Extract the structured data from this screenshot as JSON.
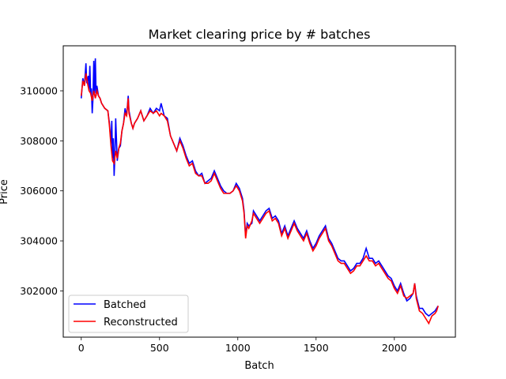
{
  "chart_data": {
    "type": "line",
    "title": "Market clearing price by # batches",
    "xlabel": "Batch",
    "ylabel": "Price",
    "xlim": [
      -115,
      2390
    ],
    "ylim": [
      300150,
      311800
    ],
    "xticks": [
      0,
      500,
      1000,
      1500,
      2000
    ],
    "yticks": [
      302000,
      304000,
      306000,
      308000,
      310000
    ],
    "legend": {
      "placement": "lower-left"
    },
    "grid": false,
    "series": [
      {
        "name": "Batched",
        "color": "#0000ff",
        "points": [
          [
            0,
            309700
          ],
          [
            10,
            310500
          ],
          [
            20,
            310200
          ],
          [
            30,
            311100
          ],
          [
            35,
            310300
          ],
          [
            45,
            310600
          ],
          [
            50,
            310000
          ],
          [
            55,
            311000
          ],
          [
            60,
            309900
          ],
          [
            65,
            310100
          ],
          [
            70,
            309100
          ],
          [
            75,
            309700
          ],
          [
            80,
            311200
          ],
          [
            85,
            309900
          ],
          [
            90,
            311300
          ],
          [
            95,
            309800
          ],
          [
            100,
            310200
          ],
          [
            110,
            309800
          ],
          [
            120,
            309700
          ],
          [
            130,
            309500
          ],
          [
            150,
            309300
          ],
          [
            170,
            309200
          ],
          [
            180,
            308700
          ],
          [
            190,
            307900
          ],
          [
            195,
            308800
          ],
          [
            200,
            307300
          ],
          [
            205,
            308100
          ],
          [
            210,
            306600
          ],
          [
            215,
            307400
          ],
          [
            220,
            308900
          ],
          [
            230,
            307200
          ],
          [
            240,
            307700
          ],
          [
            250,
            307800
          ],
          [
            260,
            308400
          ],
          [
            270,
            308700
          ],
          [
            280,
            309300
          ],
          [
            290,
            309000
          ],
          [
            300,
            309800
          ],
          [
            305,
            309200
          ],
          [
            320,
            308700
          ],
          [
            330,
            308500
          ],
          [
            340,
            308700
          ],
          [
            360,
            308900
          ],
          [
            380,
            309200
          ],
          [
            400,
            308800
          ],
          [
            420,
            309000
          ],
          [
            440,
            309300
          ],
          [
            460,
            309100
          ],
          [
            480,
            309300
          ],
          [
            500,
            309200
          ],
          [
            510,
            309500
          ],
          [
            530,
            309000
          ],
          [
            550,
            308900
          ],
          [
            570,
            308200
          ],
          [
            590,
            307900
          ],
          [
            610,
            307600
          ],
          [
            630,
            308100
          ],
          [
            650,
            307800
          ],
          [
            670,
            307400
          ],
          [
            690,
            307100
          ],
          [
            710,
            307200
          ],
          [
            730,
            306800
          ],
          [
            750,
            306600
          ],
          [
            770,
            306700
          ],
          [
            790,
            306300
          ],
          [
            810,
            306400
          ],
          [
            830,
            306500
          ],
          [
            850,
            306800
          ],
          [
            870,
            306500
          ],
          [
            890,
            306200
          ],
          [
            910,
            306000
          ],
          [
            930,
            305900
          ],
          [
            950,
            305900
          ],
          [
            970,
            306000
          ],
          [
            990,
            306300
          ],
          [
            1010,
            306100
          ],
          [
            1030,
            305700
          ],
          [
            1040,
            305200
          ],
          [
            1050,
            304200
          ],
          [
            1060,
            304700
          ],
          [
            1070,
            304600
          ],
          [
            1090,
            304700
          ],
          [
            1100,
            305200
          ],
          [
            1120,
            305000
          ],
          [
            1140,
            304800
          ],
          [
            1160,
            305000
          ],
          [
            1180,
            305200
          ],
          [
            1200,
            305300
          ],
          [
            1220,
            304900
          ],
          [
            1240,
            305000
          ],
          [
            1260,
            304800
          ],
          [
            1280,
            304300
          ],
          [
            1300,
            304600
          ],
          [
            1320,
            304200
          ],
          [
            1340,
            304500
          ],
          [
            1360,
            304800
          ],
          [
            1380,
            304500
          ],
          [
            1400,
            304300
          ],
          [
            1420,
            304100
          ],
          [
            1440,
            304400
          ],
          [
            1460,
            304000
          ],
          [
            1480,
            303700
          ],
          [
            1500,
            303900
          ],
          [
            1520,
            304200
          ],
          [
            1540,
            304400
          ],
          [
            1560,
            304600
          ],
          [
            1580,
            304100
          ],
          [
            1600,
            303900
          ],
          [
            1620,
            303600
          ],
          [
            1640,
            303300
          ],
          [
            1660,
            303200
          ],
          [
            1680,
            303200
          ],
          [
            1700,
            303000
          ],
          [
            1720,
            302800
          ],
          [
            1740,
            302900
          ],
          [
            1760,
            303100
          ],
          [
            1780,
            303100
          ],
          [
            1800,
            303300
          ],
          [
            1820,
            303700
          ],
          [
            1840,
            303300
          ],
          [
            1860,
            303300
          ],
          [
            1880,
            303100
          ],
          [
            1900,
            303200
          ],
          [
            1920,
            303000
          ],
          [
            1940,
            302800
          ],
          [
            1960,
            302600
          ],
          [
            1980,
            302500
          ],
          [
            2000,
            302200
          ],
          [
            2020,
            302000
          ],
          [
            2040,
            302300
          ],
          [
            2060,
            301900
          ],
          [
            2080,
            301600
          ],
          [
            2100,
            301700
          ],
          [
            2120,
            301900
          ],
          [
            2130,
            302300
          ],
          [
            2140,
            301800
          ],
          [
            2160,
            301300
          ],
          [
            2180,
            301300
          ],
          [
            2200,
            301100
          ],
          [
            2220,
            301000
          ],
          [
            2240,
            301100
          ],
          [
            2260,
            301200
          ],
          [
            2270,
            301300
          ],
          [
            2280,
            301400
          ]
        ]
      },
      {
        "name": "Reconstructed",
        "color": "#ff0000",
        "points": [
          [
            0,
            309800
          ],
          [
            10,
            310400
          ],
          [
            20,
            310200
          ],
          [
            30,
            310700
          ],
          [
            40,
            310300
          ],
          [
            50,
            310000
          ],
          [
            60,
            309900
          ],
          [
            70,
            309600
          ],
          [
            80,
            310000
          ],
          [
            90,
            309700
          ],
          [
            100,
            310000
          ],
          [
            110,
            309800
          ],
          [
            120,
            309700
          ],
          [
            130,
            309500
          ],
          [
            150,
            309300
          ],
          [
            170,
            309200
          ],
          [
            180,
            308600
          ],
          [
            190,
            307800
          ],
          [
            200,
            307200
          ],
          [
            210,
            307100
          ],
          [
            220,
            307600
          ],
          [
            230,
            307300
          ],
          [
            240,
            307700
          ],
          [
            250,
            307900
          ],
          [
            260,
            308400
          ],
          [
            270,
            308700
          ],
          [
            280,
            309100
          ],
          [
            290,
            309000
          ],
          [
            300,
            309700
          ],
          [
            305,
            309100
          ],
          [
            320,
            308700
          ],
          [
            330,
            308500
          ],
          [
            340,
            308700
          ],
          [
            360,
            308900
          ],
          [
            380,
            309200
          ],
          [
            400,
            308800
          ],
          [
            420,
            309000
          ],
          [
            440,
            309200
          ],
          [
            460,
            309100
          ],
          [
            480,
            309200
          ],
          [
            500,
            309000
          ],
          [
            510,
            309100
          ],
          [
            530,
            309000
          ],
          [
            550,
            308800
          ],
          [
            570,
            308200
          ],
          [
            590,
            307900
          ],
          [
            610,
            307600
          ],
          [
            630,
            308000
          ],
          [
            650,
            307700
          ],
          [
            670,
            307300
          ],
          [
            690,
            307000
          ],
          [
            710,
            307100
          ],
          [
            730,
            306700
          ],
          [
            750,
            306600
          ],
          [
            770,
            306600
          ],
          [
            790,
            306300
          ],
          [
            810,
            306300
          ],
          [
            830,
            306400
          ],
          [
            850,
            306700
          ],
          [
            870,
            306400
          ],
          [
            890,
            306100
          ],
          [
            910,
            305900
          ],
          [
            930,
            305900
          ],
          [
            950,
            305900
          ],
          [
            970,
            306000
          ],
          [
            990,
            306200
          ],
          [
            1010,
            306000
          ],
          [
            1030,
            305600
          ],
          [
            1040,
            305100
          ],
          [
            1050,
            304100
          ],
          [
            1060,
            304600
          ],
          [
            1070,
            304500
          ],
          [
            1090,
            304800
          ],
          [
            1100,
            305100
          ],
          [
            1120,
            304900
          ],
          [
            1140,
            304700
          ],
          [
            1160,
            304900
          ],
          [
            1180,
            305100
          ],
          [
            1200,
            305200
          ],
          [
            1220,
            304800
          ],
          [
            1240,
            304900
          ],
          [
            1260,
            304700
          ],
          [
            1280,
            304200
          ],
          [
            1300,
            304500
          ],
          [
            1320,
            304100
          ],
          [
            1340,
            304400
          ],
          [
            1360,
            304700
          ],
          [
            1380,
            304400
          ],
          [
            1400,
            304200
          ],
          [
            1420,
            304000
          ],
          [
            1440,
            304300
          ],
          [
            1460,
            303900
          ],
          [
            1480,
            303600
          ],
          [
            1500,
            303800
          ],
          [
            1520,
            304100
          ],
          [
            1540,
            304300
          ],
          [
            1560,
            304500
          ],
          [
            1580,
            304000
          ],
          [
            1600,
            303800
          ],
          [
            1620,
            303500
          ],
          [
            1640,
            303200
          ],
          [
            1660,
            303100
          ],
          [
            1680,
            303100
          ],
          [
            1700,
            302900
          ],
          [
            1720,
            302700
          ],
          [
            1740,
            302800
          ],
          [
            1760,
            303000
          ],
          [
            1780,
            303000
          ],
          [
            1800,
            303200
          ],
          [
            1820,
            303400
          ],
          [
            1840,
            303200
          ],
          [
            1860,
            303200
          ],
          [
            1880,
            303000
          ],
          [
            1900,
            303100
          ],
          [
            1920,
            302900
          ],
          [
            1940,
            302700
          ],
          [
            1960,
            302500
          ],
          [
            1980,
            302400
          ],
          [
            2000,
            302100
          ],
          [
            2020,
            301900
          ],
          [
            2040,
            302200
          ],
          [
            2060,
            301800
          ],
          [
            2080,
            301700
          ],
          [
            2100,
            301800
          ],
          [
            2120,
            301900
          ],
          [
            2130,
            302300
          ],
          [
            2140,
            301700
          ],
          [
            2160,
            301200
          ],
          [
            2180,
            301100
          ],
          [
            2200,
            300900
          ],
          [
            2220,
            300700
          ],
          [
            2240,
            301000
          ],
          [
            2260,
            301100
          ],
          [
            2270,
            301200
          ],
          [
            2280,
            301400
          ]
        ]
      }
    ]
  }
}
